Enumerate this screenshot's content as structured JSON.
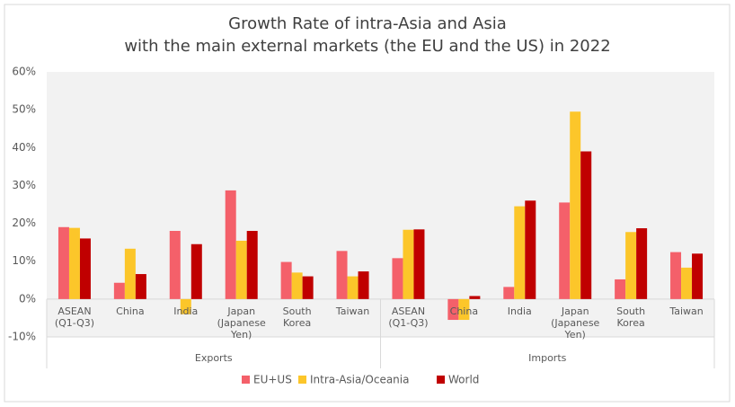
{
  "chart_data": {
    "type": "bar",
    "title": "Growth Rate of intra-Asia and Asia",
    "subtitle": "with the main external markets (the EU and the US) in 2022",
    "groups": [
      {
        "name": "Exports",
        "categories": [
          "ASEAN (Q1-Q3)",
          "China",
          "India",
          "Japan (Japanese Yen)",
          "South Korea",
          "Taiwan"
        ]
      },
      {
        "name": "Imports",
        "categories": [
          "ASEAN (Q1-Q3)",
          "China",
          "India",
          "Japan (Japanese Yen)",
          "South Korea",
          "Taiwan"
        ]
      }
    ],
    "series": [
      {
        "name": "EU+US",
        "color": "#f4606a",
        "values": [
          19,
          4.3,
          18,
          28.7,
          9.8,
          12.7,
          10.8,
          -5.5,
          3.2,
          25.5,
          5.2,
          12.4
        ]
      },
      {
        "name": "Intra-Asia/Oceania",
        "color": "#fcc62a",
        "values": [
          18.8,
          13.3,
          -4,
          15.4,
          7,
          6,
          18.3,
          -5.5,
          24.5,
          49.5,
          17.7,
          8.3
        ]
      },
      {
        "name": "World",
        "color": "#c00000",
        "values": [
          16,
          6.6,
          14.5,
          18,
          6,
          7.3,
          18.4,
          0.8,
          26,
          39,
          18.7,
          12
        ]
      }
    ],
    "ylim": [
      -10,
      60
    ],
    "yticks": [
      {
        "value": -10,
        "label": "-10%"
      },
      {
        "value": 0,
        "label": "0%"
      },
      {
        "value": 10,
        "label": "10%"
      },
      {
        "value": 20,
        "label": "20%"
      },
      {
        "value": 30,
        "label": "30%"
      },
      {
        "value": 40,
        "label": "40%"
      },
      {
        "value": 50,
        "label": "50%"
      },
      {
        "value": 60,
        "label": "60%"
      }
    ],
    "legend": "bottom"
  }
}
